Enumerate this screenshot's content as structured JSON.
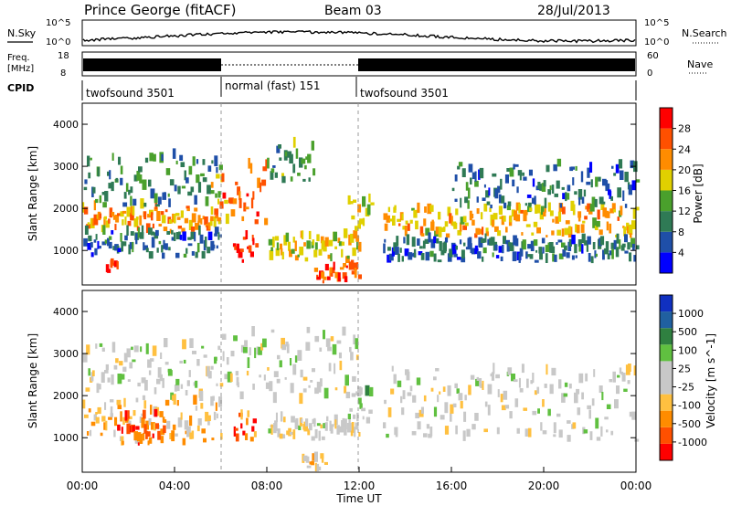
{
  "header": {
    "station": "Prince George (fitACF)",
    "beam": "Beam 03",
    "date": "28/Jul/2013"
  },
  "top_panels": {
    "nsky_label": "N.Sky",
    "nsky_ticks": [
      "10^5",
      "10^0"
    ],
    "nsearch_label": "N.Search",
    "nsearch_ticks": [
      "10^5",
      "10^0"
    ],
    "freq_label_1": "Freq.",
    "freq_label_2": "[MHz]",
    "freq_ticks": [
      "18",
      "8"
    ],
    "nave_label": "Nave",
    "nave_ticks": [
      "60",
      "0"
    ],
    "cpid_label": "CPID",
    "cpid_segments": [
      {
        "label": "twofsound 3501",
        "start": 0,
        "end": 6
      },
      {
        "label": "normal (fast) 151",
        "start": 6,
        "end": 12
      },
      {
        "label": "twofsound 3501",
        "start": 12,
        "end": 24
      }
    ]
  },
  "colors": {
    "power_scale": [
      "#0000ff",
      "#1f4fa8",
      "#2f7a55",
      "#4aa02c",
      "#e0d000",
      "#ff8c00",
      "#ff5000",
      "#ff0000"
    ],
    "velocity_scale": [
      "#ff0000",
      "#ff5000",
      "#ff8c00",
      "#ffc040",
      "#c8c8c8",
      "#c8c8c8",
      "#60c040",
      "#2f8040",
      "#2060a0",
      "#1030c0"
    ]
  },
  "chart_data": [
    {
      "type": "heatmap",
      "title": "Power",
      "xlabel": "",
      "ylabel": "Slant Range [km]",
      "xlim": [
        0,
        24
      ],
      "ylim": [
        180,
        4500
      ],
      "yticks": [
        "1000",
        "2000",
        "3000",
        "4000"
      ],
      "colorbar_label": "Power [dB]",
      "colorbar_ticks": [
        "28",
        "24",
        "20",
        "16",
        "12",
        "8",
        "4"
      ],
      "colorbar_range": [
        0,
        32
      ],
      "bands": [
        {
          "t0": 0,
          "t1": 6,
          "r0": 1400,
          "r1": 2000,
          "level": 22
        },
        {
          "t0": 0,
          "t1": 6,
          "r0": 800,
          "r1": 1400,
          "level": 8
        },
        {
          "t0": 0,
          "t1": 6,
          "r0": 2000,
          "r1": 3200,
          "level": 10
        },
        {
          "t0": 1,
          "t1": 1.5,
          "r0": 300,
          "r1": 700,
          "level": 28
        },
        {
          "t0": 5.5,
          "t1": 8,
          "r0": 1600,
          "r1": 3000,
          "level": 24
        },
        {
          "t0": 6.5,
          "t1": 7.5,
          "r0": 700,
          "r1": 1300,
          "level": 30
        },
        {
          "t0": 8,
          "t1": 12,
          "r0": 700,
          "r1": 1300,
          "level": 18
        },
        {
          "t0": 8,
          "t1": 10,
          "r0": 2600,
          "r1": 3500,
          "level": 12
        },
        {
          "t0": 10,
          "t1": 12,
          "r0": 200,
          "r1": 600,
          "level": 26
        },
        {
          "t0": 11.5,
          "t1": 12.5,
          "r0": 1400,
          "r1": 2200,
          "level": 18
        },
        {
          "t0": 13,
          "t1": 24,
          "r0": 1300,
          "r1": 2000,
          "level": 20
        },
        {
          "t0": 13,
          "t1": 24,
          "r0": 700,
          "r1": 1200,
          "level": 8
        },
        {
          "t0": 16,
          "t1": 24,
          "r0": 2000,
          "r1": 3000,
          "level": 8
        }
      ]
    },
    {
      "type": "heatmap",
      "title": "Velocity",
      "xlabel": "Time UT",
      "ylabel": "Slant Range [km]",
      "xlim": [
        0,
        24
      ],
      "ylim": [
        180,
        4500
      ],
      "xticks": [
        "00:00",
        "04:00",
        "08:00",
        "12:00",
        "16:00",
        "20:00",
        "00:00"
      ],
      "yticks": [
        "1000",
        "2000",
        "3000",
        "4000"
      ],
      "colorbar_label": "Velocity [m s^-1]",
      "colorbar_ticks": [
        "1000",
        "500",
        "100",
        "25",
        "-25",
        "-100",
        "-500",
        "-1000"
      ],
      "colorbar_range": [
        -1000,
        1000
      ],
      "bands": [
        {
          "t0": 0,
          "t1": 6,
          "r0": 800,
          "r1": 1800,
          "level": -300
        },
        {
          "t0": 0,
          "t1": 6,
          "r0": 1800,
          "r1": 3200,
          "level": 0
        },
        {
          "t0": 1.5,
          "t1": 3.5,
          "r0": 800,
          "r1": 1600,
          "level": -700
        },
        {
          "t0": 6,
          "t1": 12,
          "r0": 1800,
          "r1": 3500,
          "level": 0
        },
        {
          "t0": 6.5,
          "t1": 7.5,
          "r0": 900,
          "r1": 1500,
          "level": -600
        },
        {
          "t0": 8,
          "t1": 12,
          "r0": 900,
          "r1": 1400,
          "level": 0
        },
        {
          "t0": 9.5,
          "t1": 10.5,
          "r0": 200,
          "r1": 500,
          "level": -200
        },
        {
          "t0": 11.5,
          "t1": 12.5,
          "r0": 1300,
          "r1": 2100,
          "level": 150
        },
        {
          "t0": 13,
          "t1": 24,
          "r0": 900,
          "r1": 2600,
          "level": 0
        }
      ]
    }
  ]
}
